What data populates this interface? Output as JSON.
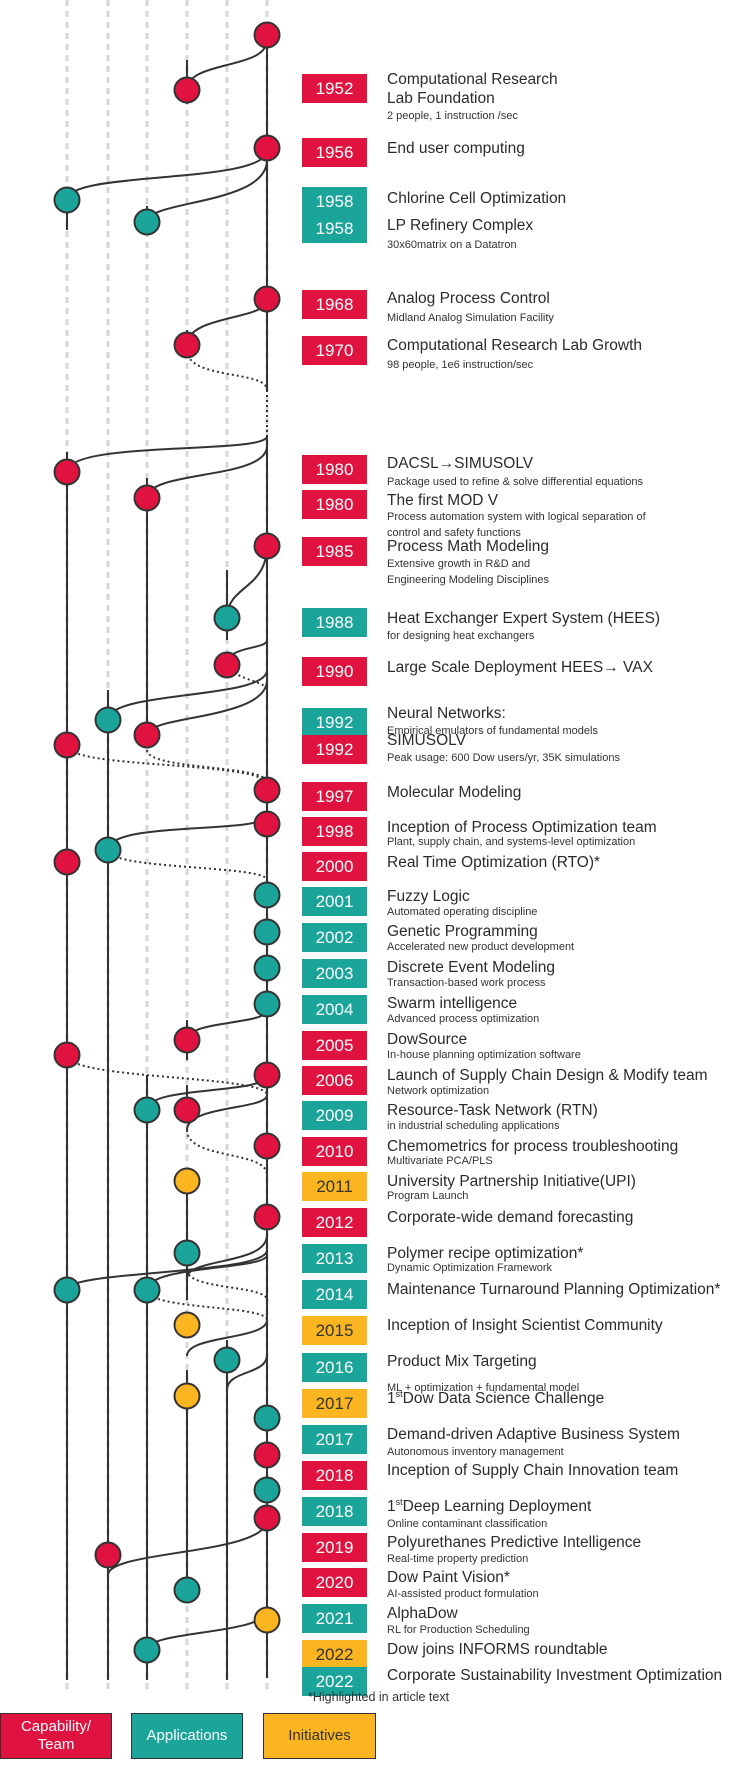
{
  "colors": {
    "capability": "#e0123f",
    "applications": "#1aa49a",
    "initiatives": "#fbb520"
  },
  "events": [
    {
      "year": "1952",
      "cat": "cap",
      "title": "Computational Research",
      "title2": "Lab Foundation",
      "sub": "2 people, 1 instruction /sec"
    },
    {
      "year": "1956",
      "cat": "cap",
      "title": "End user computing"
    },
    {
      "year": "1958",
      "cat": "app",
      "title": "Chlorine Cell Optimization"
    },
    {
      "year": "1958",
      "cat": "app",
      "title": "LP Refinery Complex",
      "sub": "30x60matrix on a Datatron"
    },
    {
      "year": "1968",
      "cat": "cap",
      "title": "Analog Process Control",
      "sub": "Midland Analog Simulation Facility"
    },
    {
      "year": "1970",
      "cat": "cap",
      "title": "Computational Research Lab Growth",
      "sub": "98 people, 1e6 instruction/sec"
    },
    {
      "year": "1980",
      "cat": "cap",
      "title": "DACSL→SIMUSOLV",
      "sub": "Package used to refine & solve differential equations"
    },
    {
      "year": "1980",
      "cat": "cap",
      "title": "The first MOD V",
      "sub": "Process automation system with logical separation of",
      "sub2": "control and safety functions"
    },
    {
      "year": "1985",
      "cat": "cap",
      "title": "Process Math Modeling",
      "sub": "Extensive growth in R&D and",
      "sub2": "Engineering Modeling Disciplines"
    },
    {
      "year": "1988",
      "cat": "app",
      "title": "Heat Exchanger Expert System (HEES)",
      "sub": "for designing heat exchangers"
    },
    {
      "year": "1990",
      "cat": "cap",
      "title": "Large Scale Deployment HEES→ VAX"
    },
    {
      "year": "1992",
      "cat": "app",
      "title": "Neural Networks:",
      "sub": "Empirical emulators of fundamental models"
    },
    {
      "year": "1992",
      "cat": "cap",
      "title": "SIMUSOLV",
      "sub": "Peak usage: 600 Dow users/yr, 35K simulations"
    },
    {
      "year": "1997",
      "cat": "cap",
      "title": "Molecular Modeling"
    },
    {
      "year": "1998",
      "cat": "cap",
      "title": "Inception of Process Optimization team",
      "sub": "Plant, supply chain, and systems-level optimization"
    },
    {
      "year": "2000",
      "cat": "cap",
      "title": "Real Time Optimization (RTO)*"
    },
    {
      "year": "2001",
      "cat": "app",
      "title": "Fuzzy Logic",
      "sub": "Automated operating discipline"
    },
    {
      "year": "2002",
      "cat": "app",
      "title": "Genetic Programming",
      "sub": "Accelerated new product development"
    },
    {
      "year": "2003",
      "cat": "app",
      "title": "Discrete Event Modeling",
      "sub": "Transaction-based work process"
    },
    {
      "year": "2004",
      "cat": "app",
      "title": "Swarm intelligence",
      "sub": "Advanced process optimization"
    },
    {
      "year": "2005",
      "cat": "cap",
      "title": "DowSource",
      "sub": "In-house planning optimization software"
    },
    {
      "year": "2006",
      "cat": "cap",
      "title": "Launch of Supply Chain Design & Modify team",
      "sub": "Network optimization"
    },
    {
      "year": "2009",
      "cat": "app",
      "title": "Resource-Task Network  (RTN)",
      "sub": "in industrial scheduling applications"
    },
    {
      "year": "2010",
      "cat": "cap",
      "title": "Chemometrics for process troubleshooting",
      "sub": "Multivariate PCA/PLS"
    },
    {
      "year": "2011",
      "cat": "ini",
      "title": "University Partnership Initiative(UPI)",
      "sub": "Program Launch"
    },
    {
      "year": "2012",
      "cat": "cap",
      "title": "Corporate-wide demand forecasting"
    },
    {
      "year": "2013",
      "cat": "app",
      "title": "Polymer recipe optimization*",
      "sub": "Dynamic Optimization Framework"
    },
    {
      "year": "2014",
      "cat": "app",
      "title": "Maintenance Turnaround Planning Optimization*"
    },
    {
      "year": "2015",
      "cat": "ini",
      "title": "Inception of Insight Scientist Community"
    },
    {
      "year": "2016",
      "cat": "app",
      "title": "Product Mix Targeting",
      "sub": "ML + optimization + fundamental model"
    },
    {
      "year": "2017",
      "cat": "ini",
      "title_sup": "st",
      "title_pre": "1",
      "title": "Dow Data Science Challenge"
    },
    {
      "year": "2017",
      "cat": "app",
      "title": "Demand-driven Adaptive Business System",
      "sub": "Autonomous inventory management"
    },
    {
      "year": "2018",
      "cat": "cap",
      "title": "Inception of Supply Chain Innovation team"
    },
    {
      "year": "2018",
      "cat": "app",
      "title_sup": "st",
      "title_pre": "1",
      "title": "Deep Learning Deployment",
      "sub": "Online contaminant classification"
    },
    {
      "year": "2019",
      "cat": "cap",
      "title": "Polyurethanes Predictive Intelligence",
      "sub": "Real-time property prediction"
    },
    {
      "year": "2020",
      "cat": "cap",
      "title": "Dow Paint Vision*",
      "sub": " AI-assisted product formulation"
    },
    {
      "year": "2021",
      "cat": "app",
      "title": "AlphaDow",
      "sub": "RL for Production Scheduling"
    },
    {
      "year": "2022",
      "cat": "ini",
      "title": "Dow joins INFORMS roundtable"
    },
    {
      "year": "2022",
      "cat": "app",
      "title": "Corporate Sustainability Investment Optimization"
    }
  ],
  "footnote": "*Highlighted in article text",
  "legend": {
    "capability": [
      "Capability/",
      "Team"
    ],
    "applications": "Applications",
    "initiatives": "Initiatives"
  }
}
